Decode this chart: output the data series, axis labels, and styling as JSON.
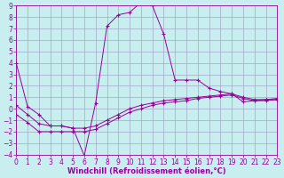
{
  "xlabel": "Windchill (Refroidissement éolien,°C)",
  "bg_color": "#c8eef0",
  "line_color": "#990099",
  "grid_color": "#9999bb",
  "xlim": [
    0,
    23
  ],
  "ylim": [
    -4,
    9
  ],
  "xticks": [
    0,
    1,
    2,
    3,
    4,
    5,
    6,
    7,
    8,
    9,
    10,
    11,
    12,
    13,
    14,
    15,
    16,
    17,
    18,
    19,
    20,
    21,
    22,
    23
  ],
  "yticks": [
    -4,
    -3,
    -2,
    -1,
    0,
    1,
    2,
    3,
    4,
    5,
    6,
    7,
    8,
    9
  ],
  "line1_x": [
    0,
    1,
    2,
    3,
    4,
    5,
    6,
    7,
    8,
    9,
    10,
    11,
    12,
    13,
    14,
    15,
    16,
    17,
    18,
    19,
    20,
    21,
    22,
    23
  ],
  "line1_y": [
    4.0,
    0.2,
    -0.5,
    -1.5,
    -1.5,
    -1.7,
    -4.1,
    0.5,
    7.2,
    8.2,
    8.4,
    9.3,
    9.0,
    6.5,
    2.5,
    2.5,
    2.5,
    1.8,
    1.5,
    1.3,
    0.6,
    0.7,
    0.8,
    0.8
  ],
  "line2_x": [
    0,
    1,
    2,
    3,
    4,
    5,
    6,
    7,
    8,
    9,
    10,
    11,
    12,
    13,
    14,
    15,
    16,
    17,
    18,
    19,
    20,
    21,
    22,
    23
  ],
  "line2_y": [
    0.3,
    -0.5,
    -1.3,
    -1.5,
    -1.5,
    -1.7,
    -1.7,
    -1.5,
    -1.0,
    -0.5,
    0.0,
    0.3,
    0.5,
    0.7,
    0.8,
    0.9,
    1.0,
    1.1,
    1.2,
    1.3,
    1.0,
    0.8,
    0.8,
    0.9
  ],
  "line3_x": [
    0,
    1,
    2,
    3,
    4,
    5,
    6,
    7,
    8,
    9,
    10,
    11,
    12,
    13,
    14,
    15,
    16,
    17,
    18,
    19,
    20,
    21,
    22,
    23
  ],
  "line3_y": [
    -0.5,
    -1.2,
    -2.0,
    -2.0,
    -2.0,
    -2.0,
    -2.0,
    -1.8,
    -1.3,
    -0.8,
    -0.3,
    0.0,
    0.3,
    0.5,
    0.6,
    0.7,
    0.9,
    1.0,
    1.1,
    1.2,
    0.9,
    0.7,
    0.7,
    0.8
  ],
  "tick_fontsize": 5.5,
  "xlabel_fontsize": 6.0,
  "lw": 0.7,
  "marker_size": 3
}
